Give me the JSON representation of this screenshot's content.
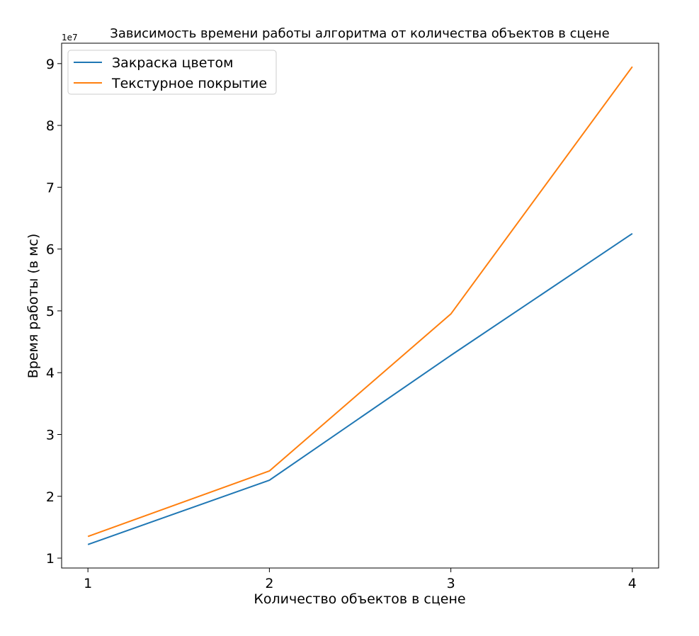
{
  "chart_data": {
    "type": "line",
    "title": "Зависимость времени работы алгоритма от количества объектов в сцене",
    "xlabel": "Количество объектов в сцене",
    "ylabel": "Время работы (в мс)",
    "y_offset_label": "1e7",
    "x": [
      1,
      2,
      3,
      4
    ],
    "x_ticks": [
      1,
      2,
      3,
      4
    ],
    "x_tick_labels": [
      "1",
      "2",
      "3",
      "4"
    ],
    "xlim": [
      0.855,
      4.145
    ],
    "y_ticks": [
      1,
      2,
      3,
      4,
      5,
      6,
      7,
      8,
      9
    ],
    "y_tick_labels": [
      "1",
      "2",
      "3",
      "4",
      "5",
      "6",
      "7",
      "8",
      "9"
    ],
    "ylim": [
      0.84,
      9.33
    ],
    "y_scale_multiplier": 10000000,
    "series": [
      {
        "name": "Закраска цветом",
        "color": "#1f77b4",
        "values": [
          1.22,
          2.26,
          4.28,
          6.25
        ]
      },
      {
        "name": "Текстурное покрытие",
        "color": "#ff7f0e",
        "values": [
          1.35,
          2.41,
          4.95,
          8.95
        ]
      }
    ],
    "legend_position": "top-left",
    "grid": false
  }
}
